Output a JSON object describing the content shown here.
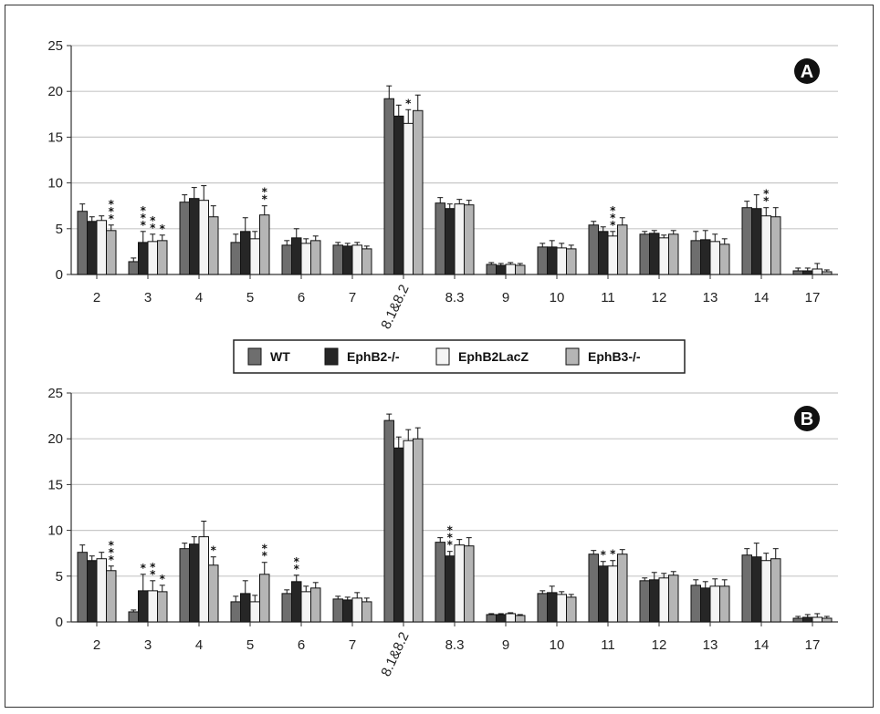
{
  "chart_data": [
    {
      "type": "bar",
      "panel_label": "A",
      "ylim": [
        0,
        25
      ],
      "yticks": [
        0,
        5,
        10,
        15,
        20,
        25
      ],
      "grid": true,
      "categories": [
        "2",
        "3",
        "4",
        "5",
        "6",
        "7",
        "8.1&8.2",
        "8.3",
        "9",
        "10",
        "11",
        "12",
        "13",
        "14",
        "17"
      ],
      "series": [
        {
          "name": "WT",
          "values": [
            6.9,
            1.4,
            7.9,
            3.5,
            3.2,
            3.2,
            19.2,
            7.8,
            1.1,
            3.0,
            5.4,
            4.4,
            3.7,
            7.3,
            0.4
          ],
          "errors": [
            0.8,
            0.4,
            0.8,
            0.9,
            0.5,
            0.3,
            1.4,
            0.6,
            0.2,
            0.4,
            0.4,
            0.3,
            1.0,
            0.7,
            0.3
          ]
        },
        {
          "name": "EphB2-/-",
          "values": [
            5.8,
            3.5,
            8.3,
            4.7,
            4.0,
            3.1,
            17.3,
            7.2,
            1.0,
            3.0,
            4.7,
            4.5,
            3.8,
            7.2,
            0.4
          ],
          "errors": [
            0.5,
            1.2,
            1.2,
            1.5,
            1.0,
            0.3,
            1.2,
            0.5,
            0.2,
            0.7,
            0.5,
            0.3,
            1.0,
            1.5,
            0.3
          ]
        },
        {
          "name": "EphB2LacZ",
          "values": [
            5.9,
            3.6,
            8.1,
            3.9,
            3.4,
            3.2,
            16.5,
            7.7,
            1.1,
            2.9,
            4.2,
            4.0,
            3.6,
            6.4,
            0.6
          ],
          "errors": [
            0.5,
            0.8,
            1.6,
            0.8,
            0.5,
            0.3,
            1.5,
            0.5,
            0.2,
            0.5,
            0.5,
            0.3,
            0.8,
            0.9,
            0.6
          ]
        },
        {
          "name": "EphB3-/-",
          "values": [
            4.8,
            3.7,
            6.3,
            6.5,
            3.7,
            2.8,
            17.9,
            7.6,
            1.0,
            2.8,
            5.4,
            4.4,
            3.3,
            6.3,
            0.3
          ],
          "errors": [
            0.6,
            0.6,
            1.2,
            1.0,
            0.5,
            0.3,
            1.7,
            0.5,
            0.2,
            0.4,
            0.8,
            0.4,
            0.6,
            1.0,
            0.2
          ]
        }
      ],
      "significance": [
        {
          "category": "2",
          "series": 3,
          "marks": "***"
        },
        {
          "category": "3",
          "series": 1,
          "marks": "***"
        },
        {
          "category": "3",
          "series": 2,
          "marks": "**"
        },
        {
          "category": "3",
          "series": 3,
          "marks": "*"
        },
        {
          "category": "5",
          "series": 3,
          "marks": "**"
        },
        {
          "category": "8.1&8.2",
          "series": 2,
          "marks": "*"
        },
        {
          "category": "11",
          "series": 2,
          "marks": "***"
        },
        {
          "category": "14",
          "series": 2,
          "marks": "**"
        }
      ]
    },
    {
      "type": "bar",
      "panel_label": "B",
      "ylim": [
        0,
        25
      ],
      "yticks": [
        0,
        5,
        10,
        15,
        20,
        25
      ],
      "grid": true,
      "categories": [
        "2",
        "3",
        "4",
        "5",
        "6",
        "7",
        "8.1&8.2",
        "8.3",
        "9",
        "10",
        "11",
        "12",
        "13",
        "14",
        "17"
      ],
      "series": [
        {
          "name": "WT",
          "values": [
            7.6,
            1.1,
            8.0,
            2.2,
            3.1,
            2.5,
            22.0,
            8.7,
            0.8,
            3.1,
            7.4,
            4.5,
            4.0,
            7.3,
            0.4
          ],
          "errors": [
            0.8,
            0.2,
            0.6,
            0.6,
            0.4,
            0.3,
            0.7,
            0.5,
            0.1,
            0.3,
            0.4,
            0.3,
            0.6,
            0.7,
            0.2
          ]
        },
        {
          "name": "EphB2-/-",
          "values": [
            6.7,
            3.4,
            8.5,
            3.1,
            4.4,
            2.4,
            19.0,
            7.2,
            0.8,
            3.2,
            6.1,
            4.6,
            3.7,
            7.1,
            0.5
          ],
          "errors": [
            0.5,
            1.8,
            0.8,
            1.4,
            0.7,
            0.3,
            1.2,
            0.5,
            0.1,
            0.7,
            0.5,
            0.8,
            0.7,
            1.5,
            0.3
          ]
        },
        {
          "name": "EphB2LacZ",
          "values": [
            6.9,
            3.4,
            9.3,
            2.2,
            3.3,
            2.6,
            19.8,
            8.4,
            0.9,
            3.0,
            6.1,
            4.8,
            3.9,
            6.7,
            0.5
          ],
          "errors": [
            0.7,
            1.1,
            1.7,
            0.7,
            0.6,
            0.6,
            1.2,
            0.6,
            0.1,
            0.3,
            0.6,
            0.5,
            0.8,
            0.8,
            0.4
          ]
        },
        {
          "name": "EphB3-/-",
          "values": [
            5.6,
            3.3,
            6.2,
            5.2,
            3.7,
            2.2,
            20.0,
            8.3,
            0.7,
            2.7,
            7.4,
            5.1,
            3.9,
            6.9,
            0.4
          ],
          "errors": [
            0.5,
            0.7,
            0.9,
            1.3,
            0.6,
            0.4,
            1.2,
            0.9,
            0.1,
            0.3,
            0.5,
            0.4,
            0.7,
            1.1,
            0.2
          ]
        }
      ],
      "significance": [
        {
          "category": "2",
          "series": 3,
          "marks": "***"
        },
        {
          "category": "3",
          "series": 1,
          "marks": "*"
        },
        {
          "category": "3",
          "series": 2,
          "marks": "**"
        },
        {
          "category": "3",
          "series": 3,
          "marks": "*"
        },
        {
          "category": "4",
          "series": 3,
          "marks": "*"
        },
        {
          "category": "5",
          "series": 3,
          "marks": "**"
        },
        {
          "category": "6",
          "series": 1,
          "marks": "**"
        },
        {
          "category": "8.3",
          "series": 1,
          "marks": "***"
        },
        {
          "category": "11",
          "series": 1,
          "marks": "*"
        },
        {
          "category": "11",
          "series": 2,
          "marks": "*"
        }
      ]
    }
  ],
  "legend": {
    "items": [
      {
        "label": "WT",
        "color": "#6e6e6e"
      },
      {
        "label": "EphB2-/-",
        "color": "#262626"
      },
      {
        "label": "EphB2LacZ",
        "color": "#f4f4f4"
      },
      {
        "label": "EphB3-/-",
        "color": "#b5b5b5"
      }
    ]
  },
  "colors": {
    "series": [
      "#6e6e6e",
      "#262626",
      "#f4f4f4",
      "#b5b5b5"
    ],
    "grid": "#c8c8c8",
    "axis": "#333333"
  }
}
